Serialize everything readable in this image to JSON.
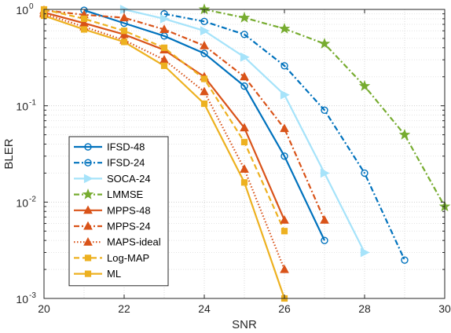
{
  "chart_data": {
    "type": "line",
    "xlabel": "SNR",
    "ylabel": "BLER",
    "xlim": [
      20,
      30
    ],
    "ylim": [
      0.001,
      1
    ],
    "yscale": "log",
    "grid": true,
    "legend": "bottom-left",
    "x_ticks": [
      "20",
      "22",
      "24",
      "26",
      "28",
      "30"
    ],
    "y_ticks": [
      {
        "value": 0.001,
        "base": "10",
        "exp": "-3"
      },
      {
        "value": 0.01,
        "base": "10",
        "exp": "-2"
      },
      {
        "value": 0.1,
        "base": "10",
        "exp": "-1"
      },
      {
        "value": 1,
        "base": "10",
        "exp": "0"
      }
    ],
    "series": [
      {
        "name": "IFSD-48",
        "color": "#0072BD",
        "dash": "solid",
        "marker": "circle",
        "x": [
          21,
          22,
          23,
          24,
          25,
          26,
          27
        ],
        "y": [
          0.98,
          0.72,
          0.53,
          0.35,
          0.16,
          0.03,
          0.004
        ]
      },
      {
        "name": "IFSD-24",
        "color": "#0072BD",
        "dash": "dashdot",
        "marker": "circle",
        "x": [
          23,
          24,
          25,
          26,
          27,
          28,
          29
        ],
        "y": [
          0.9,
          0.75,
          0.55,
          0.26,
          0.09,
          0.02,
          0.0025
        ]
      },
      {
        "name": "SOCA-24",
        "color": "#A6E3FA",
        "dash": "solid",
        "marker": "triangle-right",
        "x": [
          22,
          23,
          24,
          25,
          26,
          27,
          28
        ],
        "y": [
          1.0,
          0.8,
          0.6,
          0.32,
          0.13,
          0.02,
          0.003
        ]
      },
      {
        "name": "LMMSE",
        "color": "#77AC30",
        "dash": "dashdot",
        "marker": "star",
        "x": [
          24,
          25,
          26,
          27,
          28,
          29,
          30
        ],
        "y": [
          1.0,
          0.82,
          0.63,
          0.44,
          0.16,
          0.05,
          0.009
        ]
      },
      {
        "name": "MPPS-48",
        "color": "#D95319",
        "dash": "solid",
        "marker": "triangle-up",
        "x": [
          20,
          21,
          22,
          23,
          24,
          25,
          26
        ],
        "y": [
          0.93,
          0.72,
          0.55,
          0.38,
          0.2,
          0.059,
          0.0065
        ]
      },
      {
        "name": "MPPS-24",
        "color": "#D95319",
        "dash": "dashdot",
        "marker": "triangle-up",
        "x": [
          20,
          21,
          22,
          23,
          24,
          25,
          26,
          27
        ],
        "y": [
          0.98,
          0.88,
          0.82,
          0.62,
          0.42,
          0.2,
          0.058,
          0.0065
        ]
      },
      {
        "name": "MAPS-ideal",
        "color": "#D95319",
        "dash": "dotted",
        "marker": "triangle-up",
        "x": [
          20,
          21,
          22,
          23,
          24,
          25,
          26
        ],
        "y": [
          0.9,
          0.66,
          0.48,
          0.3,
          0.14,
          0.022,
          0.002
        ]
      },
      {
        "name": "Log-MAP",
        "color": "#EDB120",
        "dash": "dashed",
        "marker": "square",
        "x": [
          20,
          21,
          22,
          23,
          24,
          25,
          26
        ],
        "y": [
          1.0,
          0.8,
          0.6,
          0.4,
          0.19,
          0.042,
          0.005
        ]
      },
      {
        "name": "ML",
        "color": "#EDB120",
        "dash": "solid",
        "marker": "square",
        "x": [
          20,
          21,
          22,
          23,
          24,
          25,
          26
        ],
        "y": [
          0.86,
          0.62,
          0.46,
          0.26,
          0.105,
          0.016,
          0.001
        ]
      }
    ]
  }
}
